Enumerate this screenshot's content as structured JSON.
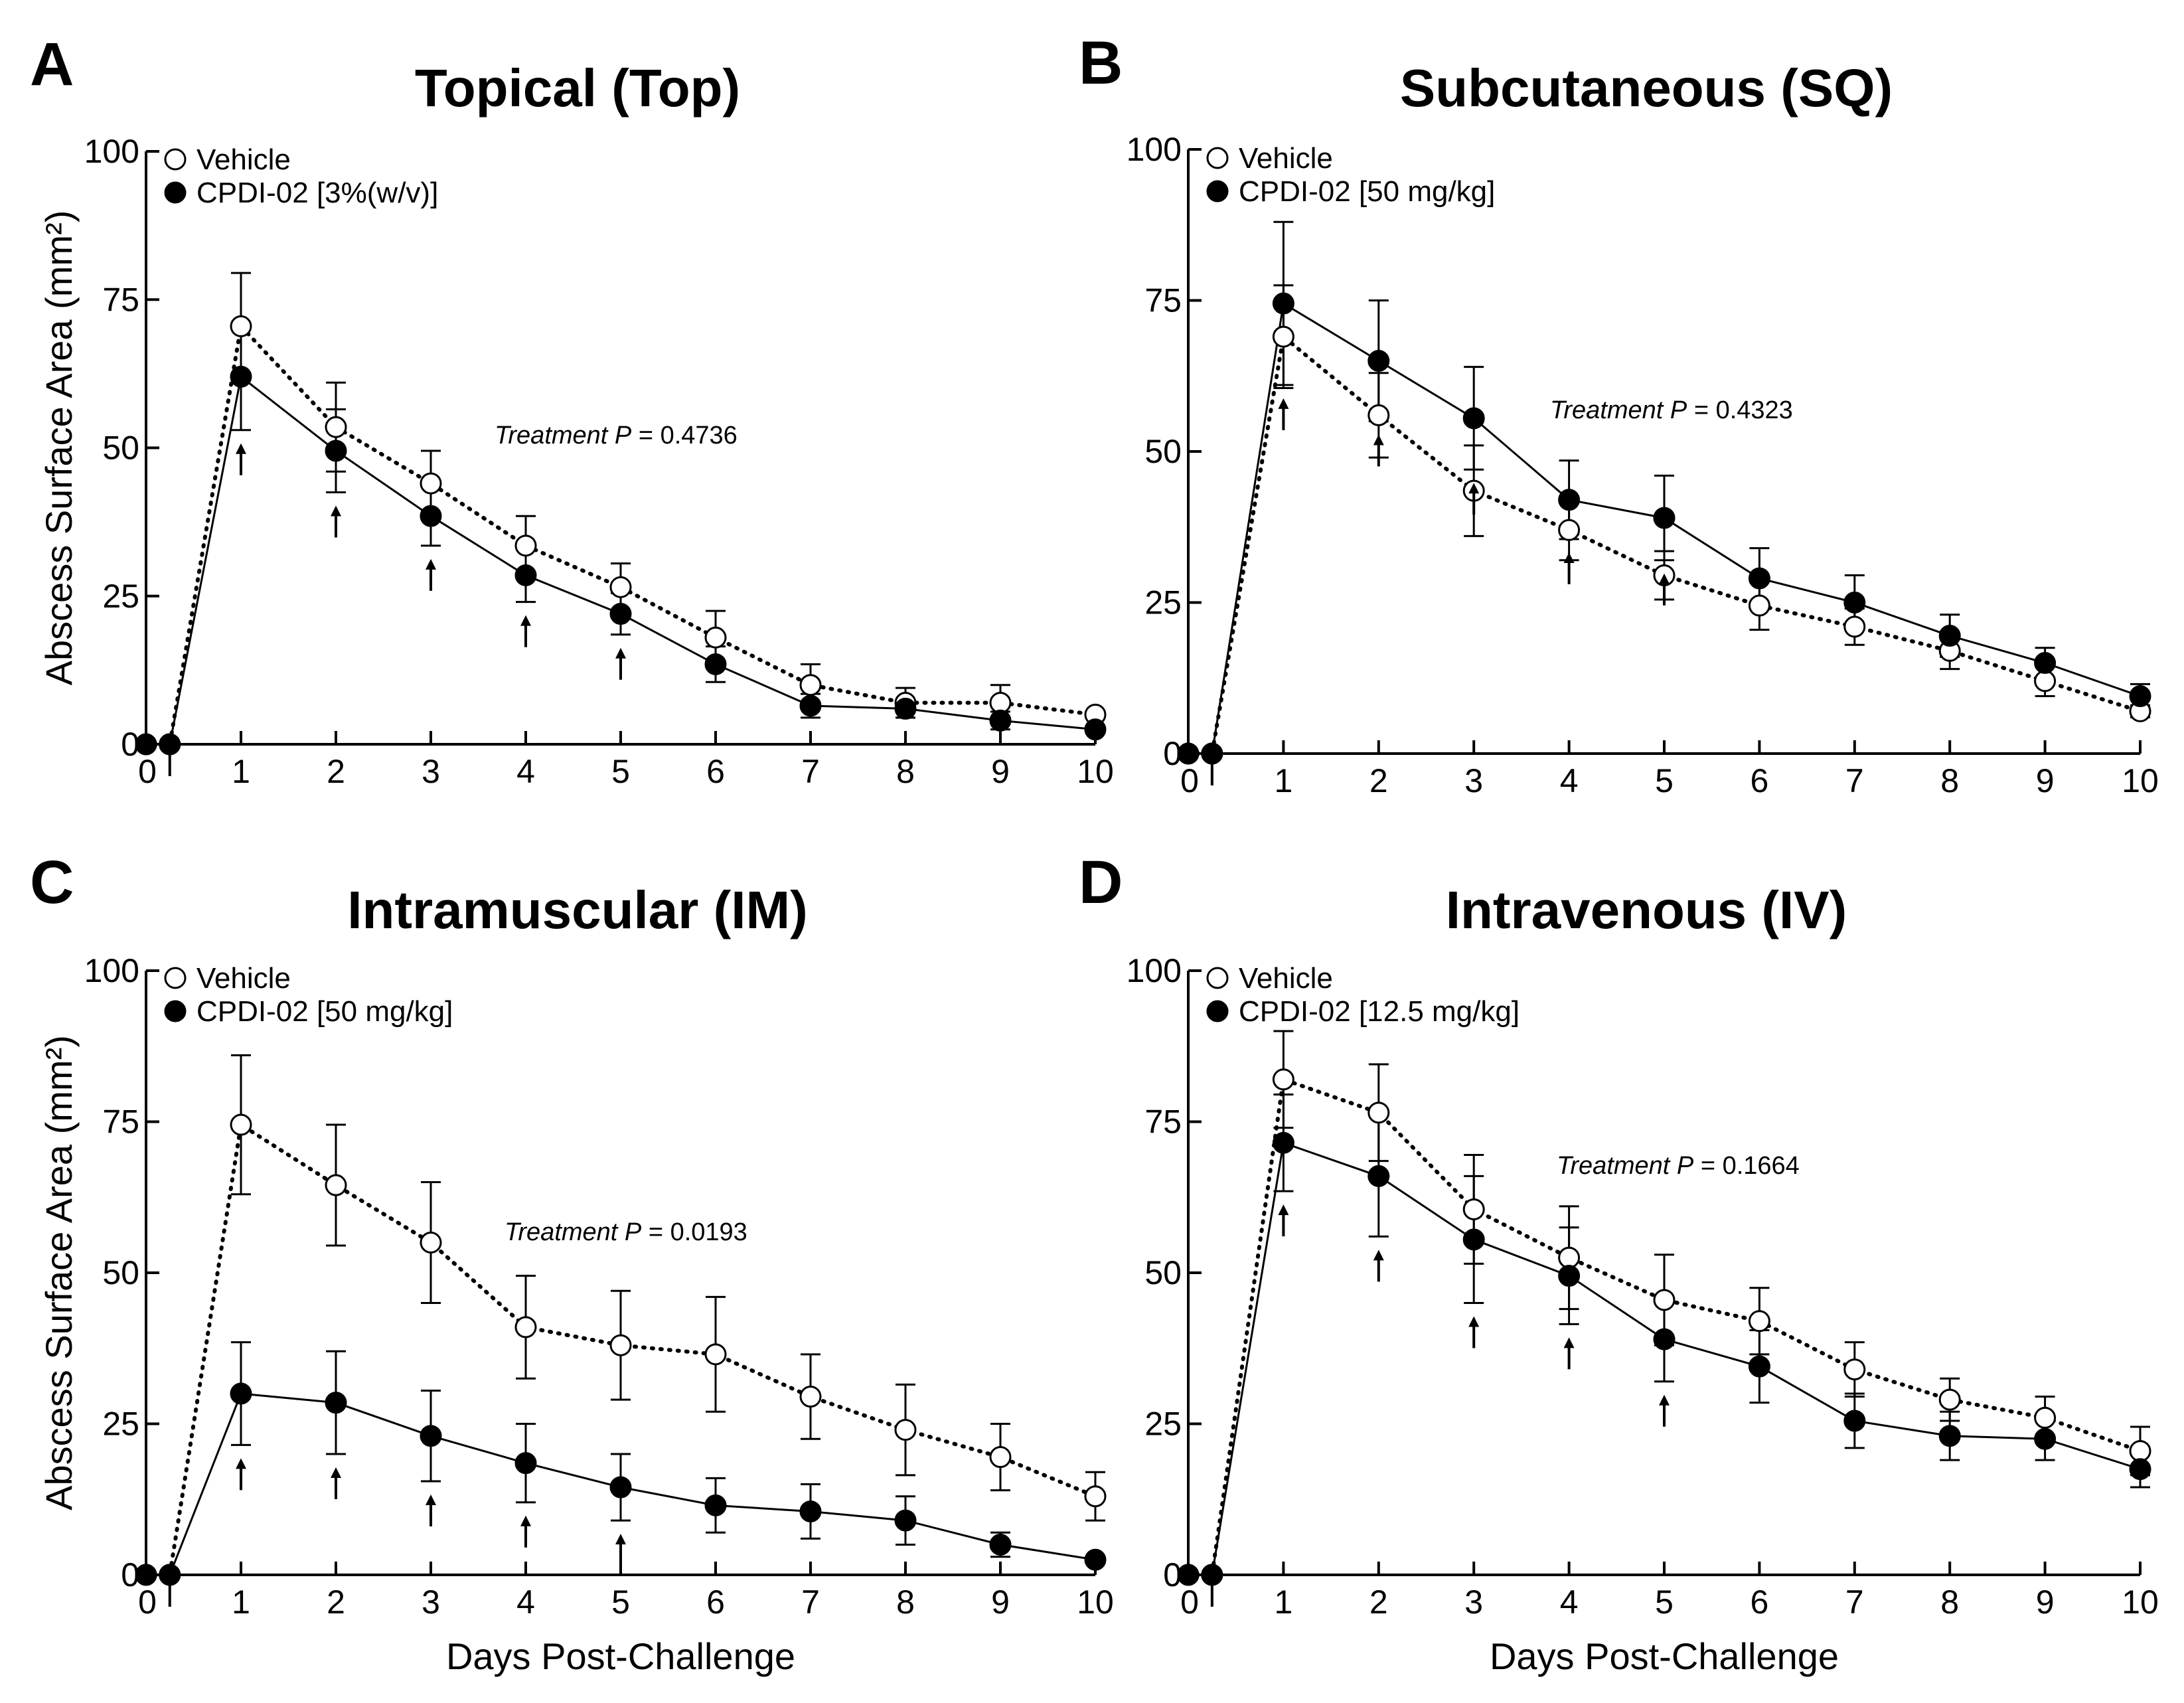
{
  "figure": {
    "shared_xlabel": "Days Post-Challenge",
    "shared_ylabel": "Abscess Surface Area (mm²)",
    "colors": {
      "line": "#000000",
      "vehicle_fill": "#ffffff",
      "treated_fill": "#000000"
    }
  },
  "chart_data": [
    {
      "panel": "A",
      "type": "line",
      "title": "Topical (Top)",
      "xlabel": "",
      "ylabel": "Abscess Surface Area (mm²)",
      "xlim": [
        0,
        10
      ],
      "ylim": [
        0,
        100
      ],
      "xticks": [
        0,
        1,
        2,
        3,
        4,
        5,
        6,
        7,
        8,
        9,
        10
      ],
      "yticks": [
        0,
        25,
        50,
        75,
        100
      ],
      "x": [
        0,
        0.25,
        1,
        2,
        3,
        4,
        5,
        6,
        7,
        8,
        9,
        10
      ],
      "series": [
        {
          "name": "Vehicle",
          "marker": "open-circle",
          "line": "dotted",
          "values": [
            0,
            0,
            70.5,
            53.5,
            44,
            33.5,
            26.5,
            18,
            10,
            7,
            7,
            5
          ],
          "errors": [
            0,
            0,
            9,
            7.5,
            5.5,
            5,
            4,
            4.5,
            3.5,
            2.5,
            3,
            0
          ]
        },
        {
          "name": "CPDI-02 [3%(w/v)]",
          "marker": "filled-circle",
          "line": "solid",
          "values": [
            0,
            0,
            62,
            49.5,
            38.5,
            28.5,
            22,
            13.5,
            6.5,
            6,
            4,
            2.5
          ],
          "errors": [
            0,
            0,
            9,
            7,
            5,
            4.5,
            3.5,
            3,
            2,
            1.5,
            1.5,
            0
          ]
        }
      ],
      "dosing_arrows_at": [
        0.25,
        1,
        2,
        3,
        4,
        5
      ],
      "annotation": {
        "italic": "Treatment P",
        "value": " = 0.4736"
      }
    },
    {
      "panel": "B",
      "type": "line",
      "title": "Subcutaneous (SQ)",
      "xlabel": "",
      "ylabel": "",
      "xlim": [
        0,
        10
      ],
      "ylim": [
        0,
        100
      ],
      "xticks": [
        0,
        1,
        2,
        3,
        4,
        5,
        6,
        7,
        8,
        9,
        10
      ],
      "yticks": [
        0,
        25,
        50,
        75,
        100
      ],
      "x": [
        0,
        0.25,
        1,
        2,
        3,
        4,
        5,
        6,
        7,
        8,
        9,
        10
      ],
      "series": [
        {
          "name": "Vehicle",
          "marker": "open-circle",
          "line": "dotted",
          "values": [
            0,
            0,
            69,
            56,
            43.5,
            37,
            29.5,
            24.5,
            21,
            17,
            12,
            7
          ],
          "errors": [
            0,
            0,
            8.5,
            7,
            7.5,
            5,
            4,
            4,
            3,
            3,
            2.5,
            1
          ]
        },
        {
          "name": "CPDI-02 [50 mg/kg]",
          "marker": "filled-circle",
          "line": "solid",
          "values": [
            0,
            0,
            74.5,
            65,
            55.5,
            42,
            39,
            29,
            25,
            19.5,
            15,
            9.5
          ],
          "errors": [
            0,
            0,
            13.5,
            10,
            8.5,
            6.5,
            7,
            5,
            4.5,
            3.5,
            2.5,
            2
          ]
        }
      ],
      "dosing_arrows_at": [
        0.25,
        1,
        2,
        3,
        4,
        5
      ],
      "annotation": {
        "italic": "Treatment P",
        "value": " = 0.4323"
      }
    },
    {
      "panel": "C",
      "type": "line",
      "title": "Intramuscular (IM)",
      "xlabel": "Days Post-Challenge",
      "ylabel": "Abscess Surface Area (mm²)",
      "xlim": [
        0,
        10
      ],
      "ylim": [
        0,
        100
      ],
      "xticks": [
        0,
        1,
        2,
        3,
        4,
        5,
        6,
        7,
        8,
        9,
        10
      ],
      "yticks": [
        0,
        25,
        50,
        75,
        100
      ],
      "x": [
        0,
        0.25,
        1,
        2,
        3,
        4,
        5,
        6,
        7,
        8,
        9,
        10
      ],
      "series": [
        {
          "name": "Vehicle",
          "marker": "open-circle",
          "line": "dotted",
          "values": [
            0,
            0,
            74.5,
            64.5,
            55,
            41,
            38,
            36.5,
            29.5,
            24,
            19.5,
            13
          ],
          "errors": [
            0,
            0,
            11.5,
            10,
            10,
            8.5,
            9,
            9.5,
            7,
            7.5,
            5.5,
            4
          ]
        },
        {
          "name": "CPDI-02 [50 mg/kg]",
          "marker": "filled-circle",
          "line": "solid",
          "values": [
            0,
            0,
            30,
            28.5,
            23,
            18.5,
            14.5,
            11.5,
            10.5,
            9,
            5,
            2.5
          ],
          "errors": [
            0,
            0,
            8.5,
            8.5,
            7.5,
            6.5,
            5.5,
            4.5,
            4.5,
            4,
            2,
            0
          ]
        }
      ],
      "dosing_arrows_at": [
        0.25,
        1,
        2,
        3,
        4,
        5
      ],
      "annotation": {
        "italic": "Treatment P",
        "value": " = 0.0193"
      }
    },
    {
      "panel": "D",
      "type": "line",
      "title": "Intravenous (IV)",
      "xlabel": "Days Post-Challenge",
      "ylabel": "",
      "xlim": [
        0,
        10
      ],
      "ylim": [
        0,
        100
      ],
      "xticks": [
        0,
        1,
        2,
        3,
        4,
        5,
        6,
        7,
        8,
        9,
        10
      ],
      "yticks": [
        0,
        25,
        50,
        75,
        100
      ],
      "x": [
        0,
        0.25,
        1,
        2,
        3,
        4,
        5,
        6,
        7,
        8,
        9,
        10
      ],
      "series": [
        {
          "name": "Vehicle",
          "marker": "open-circle",
          "line": "dotted",
          "values": [
            0,
            0,
            82,
            76.5,
            60.5,
            52.5,
            45.5,
            42,
            34,
            29,
            26,
            20.5
          ],
          "errors": [
            0,
            0,
            8,
            8,
            9,
            8.5,
            7.5,
            5.5,
            4.5,
            3.5,
            3.5,
            4
          ]
        },
        {
          "name": "CPDI-02 [12.5 mg/kg]",
          "marker": "filled-circle",
          "line": "solid",
          "values": [
            0,
            0,
            71.5,
            66,
            55.5,
            49.5,
            39,
            34.5,
            25.5,
            23,
            22.5,
            17.5
          ],
          "errors": [
            0,
            0,
            8,
            10,
            10.5,
            8,
            7,
            6,
            4.5,
            4,
            3.5,
            3
          ]
        }
      ],
      "dosing_arrows_at": [
        0.25,
        1,
        2,
        3,
        4,
        5
      ],
      "annotation": {
        "italic": "Treatment P",
        "value": " = 0.1664"
      }
    }
  ]
}
